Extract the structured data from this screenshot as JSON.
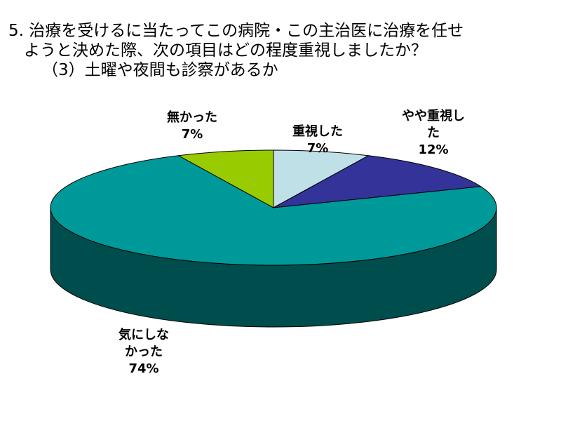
{
  "chart_data": {
    "type": "pie",
    "title_lines": [
      "5. 治療を受けるに当たってこの病院・この主治医に治療を任せ",
      "ようと決めた際、次の項目はどの程度重視しましたか？",
      "（3）土曜や夜間も診察があるか"
    ],
    "slices": [
      {
        "label_lines": [
          "重視した"
        ],
        "value": 7,
        "value_label": "7%",
        "color": "#bfe0e6"
      },
      {
        "label_lines": [
          "やや重視し",
          "た"
        ],
        "value": 12,
        "value_label": "12%",
        "color": "#333399"
      },
      {
        "label_lines": [
          "気にしな",
          "かった"
        ],
        "value": 74,
        "value_label": "74%",
        "color": "#009999"
      },
      {
        "label_lines": [
          "無かった"
        ],
        "value": 7,
        "value_label": "7%",
        "color": "#99cc00"
      }
    ],
    "side_color": "#004d4d",
    "legend": "none"
  }
}
